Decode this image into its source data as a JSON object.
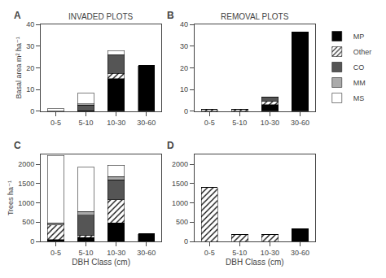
{
  "chart_data": [
    {
      "type": "bar",
      "stacked": true,
      "grid": false,
      "legend": "upper right",
      "title": "INVADED PLOTS",
      "ylabel": "Basal area m² ha⁻¹",
      "annotations": [
        "A"
      ],
      "categories": [
        "0-5",
        "5-10",
        "10-30",
        "30-60"
      ],
      "series": [
        {
          "name": "MP",
          "color": "black",
          "values": [
            0.1,
            0.3,
            15.0,
            21.0
          ]
        },
        {
          "name": "Other",
          "color": "white",
          "marker": "hatch",
          "values": [
            0.0,
            0.0,
            2.5,
            0.0
          ]
        },
        {
          "name": "CO",
          "color": "#555555",
          "values": [
            0.0,
            2.5,
            8.0,
            0.0
          ]
        },
        {
          "name": "MM",
          "color": "#aaaaaa",
          "values": [
            0.0,
            0.5,
            0.5,
            0.0
          ]
        },
        {
          "name": "MS",
          "color": "white",
          "values": [
            1.0,
            5.0,
            2.0,
            0.0
          ]
        }
      ],
      "ylim": [
        0,
        40
      ],
      "yticks": [
        0,
        10,
        20,
        30,
        40
      ]
    },
    {
      "type": "bar",
      "stacked": true,
      "grid": false,
      "title": "REMOVAL PLOTS",
      "annotations": [
        "B"
      ],
      "categories": [
        "0-5",
        "5-10",
        "10-30",
        "30-60"
      ],
      "series": [
        {
          "name": "MP",
          "color": "black",
          "values": [
            0.0,
            0.0,
            3.0,
            36.5
          ]
        },
        {
          "name": "Other",
          "color": "white",
          "marker": "hatch",
          "values": [
            0.7,
            0.7,
            1.5,
            0.0
          ]
        },
        {
          "name": "CO",
          "color": "#555555",
          "values": [
            0.0,
            0.0,
            1.5,
            0.0
          ]
        },
        {
          "name": "MM",
          "color": "#aaaaaa",
          "values": [
            0.0,
            0.0,
            0.5,
            0.0
          ]
        },
        {
          "name": "MS",
          "color": "white",
          "values": [
            0.0,
            0.0,
            0.0,
            0.0
          ]
        }
      ],
      "ylim": [
        0,
        40
      ],
      "yticks": [
        0,
        10,
        20,
        30,
        40
      ]
    },
    {
      "type": "bar",
      "stacked": true,
      "grid": false,
      "ylabel": "Trees ha⁻¹",
      "xlabel": "DBH Class (cm)",
      "annotations": [
        "C"
      ],
      "categories": [
        "0-5",
        "5-10",
        "10-30",
        "30-60"
      ],
      "series": [
        {
          "name": "MP",
          "color": "black",
          "values": [
            50,
            100,
            475,
            200
          ]
        },
        {
          "name": "Other",
          "color": "white",
          "marker": "hatch",
          "values": [
            375,
            50,
            600,
            0
          ]
        },
        {
          "name": "CO",
          "color": "#555555",
          "values": [
            0,
            525,
            525,
            0
          ]
        },
        {
          "name": "MM",
          "color": "#aaaaaa",
          "values": [
            50,
            100,
            75,
            0
          ]
        },
        {
          "name": "MS",
          "color": "white",
          "values": [
            1750,
            1150,
            300,
            0
          ]
        }
      ],
      "ylim": [
        0,
        2250
      ],
      "yticks": [
        0,
        500,
        1000,
        1500,
        2000
      ]
    },
    {
      "type": "bar",
      "stacked": true,
      "grid": false,
      "xlabel": "DBH Class (cm)",
      "annotations": [
        "D"
      ],
      "categories": [
        "0-5",
        "5-10",
        "10-30",
        "30-60"
      ],
      "series": [
        {
          "name": "MP",
          "color": "black",
          "values": [
            0,
            0,
            0,
            325
          ]
        },
        {
          "name": "Other",
          "color": "white",
          "marker": "hatch",
          "values": [
            1400,
            175,
            175,
            0
          ]
        },
        {
          "name": "CO",
          "color": "#555555",
          "values": [
            0,
            0,
            0,
            0
          ]
        },
        {
          "name": "MM",
          "color": "#aaaaaa",
          "values": [
            0,
            0,
            0,
            0
          ]
        },
        {
          "name": "MS",
          "color": "white",
          "values": [
            0,
            0,
            0,
            0
          ]
        }
      ],
      "ylim": [
        0,
        2250
      ],
      "yticks": [
        0,
        500,
        1000,
        1500,
        2000
      ]
    }
  ]
}
